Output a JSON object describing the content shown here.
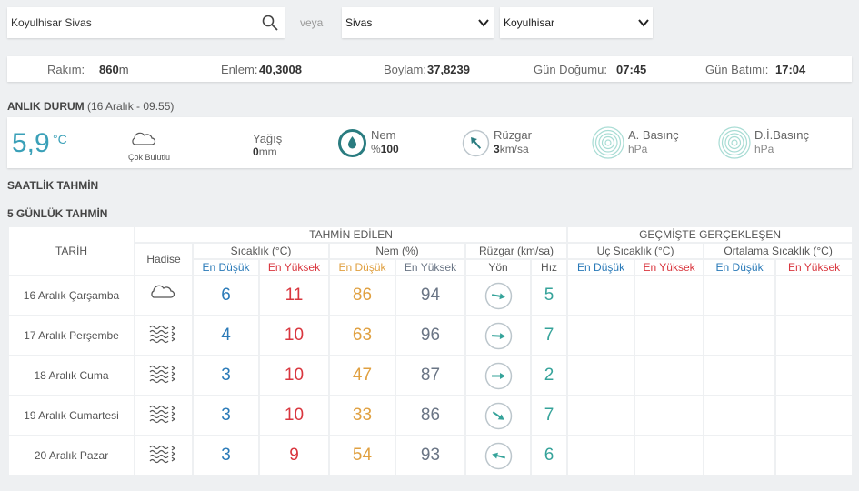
{
  "search": {
    "value": "Koyulhisar Sivas",
    "separator": "veya",
    "province": "Sivas",
    "district": "Koyulhisar"
  },
  "location": {
    "altitude_label": "Rakım:",
    "altitude": "860",
    "altitude_unit": "m",
    "latitude_label": "Enlem:",
    "latitude": "40,3008",
    "longitude_label": "Boylam:",
    "longitude": "37,8239",
    "sunrise_label": "Gün Doğumu:",
    "sunrise": "07:45",
    "sunset_label": "Gün Batımı:",
    "sunset": "17:04"
  },
  "current": {
    "title": "ANLIK DURUM",
    "time": "(16 Aralık - 09.55)",
    "temp": "5,9",
    "temp_unit": "°C",
    "condition": "Çok Bulutlu",
    "rain_label": "Yağış",
    "rain_value": "0",
    "rain_unit": "mm",
    "humidity_label": "Nem",
    "humidity_prefix": "%",
    "humidity_value": "100",
    "wind_label": "Rüzgar",
    "wind_value": "3",
    "wind_unit": "km/sa",
    "pressure_label": "A. Basınç",
    "pressure_unit": "hPa",
    "sea_pressure_label": "D.İ.Basınç",
    "sea_pressure_unit": "hPa"
  },
  "hourly_title": "SAATLİK TAHMİN",
  "forecast": {
    "title": "5 GÜNLÜK TAHMİN",
    "group_forecast": "TAHMİN EDİLEN",
    "group_past": "GEÇMİŞTE GERÇEKLEŞEN",
    "date": "TARİH",
    "event": "Hadise",
    "temp": "Sıcaklık (°C)",
    "humidity": "Nem (%)",
    "wind": "Rüzgar (km/sa)",
    "extreme": "Uç Sıcaklık (°C)",
    "average": "Ortalama Sıcaklık (°C)",
    "min": "En Düşük",
    "max": "En Yüksek",
    "direction": "Yön",
    "speed": "Hız",
    "rows": [
      {
        "date": "16 Aralık Çarşamba",
        "temp_min": 6,
        "temp_max": 11,
        "humidity_min": 86,
        "humidity_max": 94,
        "wind_speed": 5
      },
      {
        "date": "17 Aralık Perşembe",
        "temp_min": 4,
        "temp_max": 10,
        "humidity_min": 63,
        "humidity_max": 96,
        "wind_speed": 7
      },
      {
        "date": "18 Aralık Cuma",
        "temp_min": 3,
        "temp_max": 10,
        "humidity_min": 47,
        "humidity_max": 87,
        "wind_speed": 2
      },
      {
        "date": "19 Aralık Cumartesi",
        "temp_min": 3,
        "temp_max": 10,
        "humidity_min": 33,
        "humidity_max": 86,
        "wind_speed": 7
      },
      {
        "date": "20 Aralık Pazar",
        "temp_min": 3,
        "temp_max": 9,
        "humidity_min": 54,
        "humidity_max": 93,
        "wind_speed": 6
      }
    ]
  }
}
